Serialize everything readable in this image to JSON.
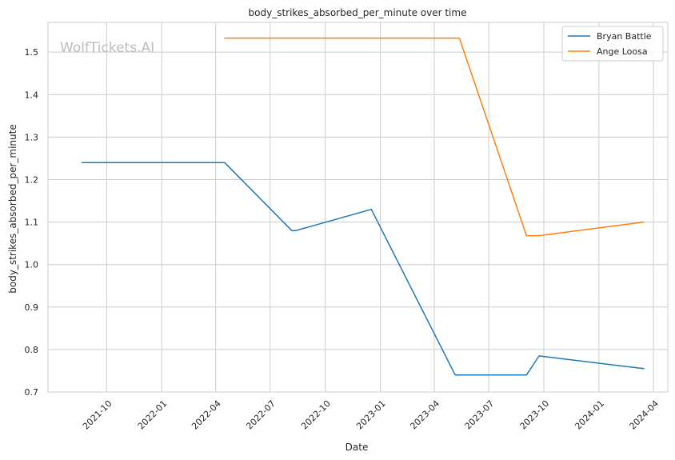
{
  "chart_data": {
    "type": "line",
    "title": "body_strikes_absorbed_per_minute over time",
    "xlabel": "Date",
    "ylabel": "body_strikes_absorbed_per_minute",
    "watermark": "WolfTickets.AI",
    "x_tick_labels": [
      "2021-10",
      "2022-01",
      "2022-04",
      "2022-07",
      "2022-10",
      "2023-01",
      "2023-04",
      "2023-07",
      "2023-10",
      "2024-01",
      "2024-04"
    ],
    "y_tick_labels": [
      "0.7",
      "0.8",
      "0.9",
      "1.0",
      "1.1",
      "1.2",
      "1.3",
      "1.4",
      "1.5"
    ],
    "ylim": [
      0.7,
      1.57
    ],
    "xlim": [
      "2021-06-25",
      "2024-04-25"
    ],
    "grid": true,
    "legend_position": "top-right",
    "series": [
      {
        "name": "Bryan Battle",
        "color": "#1f77b4",
        "x": [
          "2021-08-21",
          "2022-04-16",
          "2022-08-06",
          "2022-08-13",
          "2022-12-17",
          "2023-05-06",
          "2023-09-02",
          "2023-09-23",
          "2024-03-16"
        ],
        "values": [
          1.24,
          1.24,
          1.08,
          1.08,
          1.13,
          0.74,
          0.74,
          0.785,
          0.755
        ]
      },
      {
        "name": "Ange Loosa",
        "color": "#ff7f0e",
        "x": [
          "2022-04-16",
          "2023-05-13",
          "2023-09-02",
          "2023-09-23",
          "2024-03-16"
        ],
        "values": [
          1.533,
          1.533,
          1.068,
          1.068,
          1.1
        ]
      }
    ]
  }
}
